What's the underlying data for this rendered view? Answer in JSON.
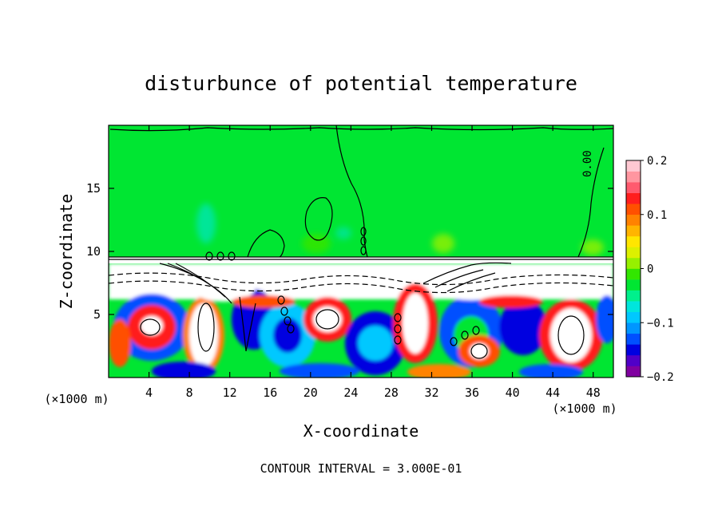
{
  "chart_data": {
    "type": "heatmap",
    "title": "disturbunce of potential temperature",
    "xlabel": "X-coordinate",
    "ylabel": "Z-coordinate",
    "x_unit": "(×1000 m)",
    "y_unit": "(×1000 m)",
    "xlim": [
      0,
      50
    ],
    "ylim": [
      0,
      20
    ],
    "x_ticks": [
      4,
      8,
      12,
      16,
      20,
      24,
      28,
      32,
      36,
      40,
      44,
      48
    ],
    "y_ticks": [
      5,
      10,
      15
    ],
    "colorbar": {
      "range": [
        -0.2,
        0.2
      ],
      "ticks": [
        {
          "value": 0.2,
          "label": "0.2"
        },
        {
          "value": 0.1,
          "label": "0.1"
        },
        {
          "value": 0.0,
          "label": "0"
        },
        {
          "value": -0.1,
          "label": "−0.1"
        },
        {
          "value": -0.2,
          "label": "−0.2"
        }
      ],
      "colors": [
        "#8000a0",
        "#5000c8",
        "#0000e0",
        "#0050ff",
        "#0096ff",
        "#00c8ff",
        "#00e6dc",
        "#00f08c",
        "#00e632",
        "#32e600",
        "#96f000",
        "#dcf000",
        "#ffe600",
        "#ffb400",
        "#ff8200",
        "#ff5000",
        "#ff1e1e",
        "#ff5a6e",
        "#ff96a0",
        "#ffc8d2"
      ]
    },
    "contour_labels": [
      "0.00"
    ],
    "contour_interval": "CONTOUR INTERVAL = 3.000E-01"
  }
}
